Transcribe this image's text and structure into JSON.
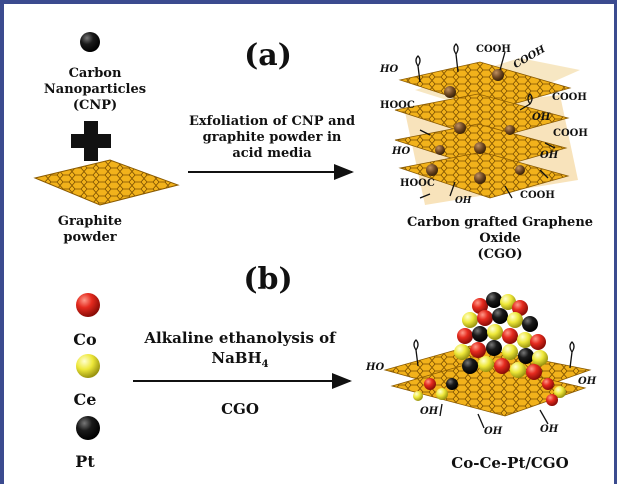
{
  "panel_a": {
    "label": "(a)",
    "cnp_label_line1": "Carbon",
    "cnp_label_line2": "Nanoparticles (CNP)",
    "graphite_label_line1": "Graphite",
    "graphite_label_line2": "powder",
    "process_line1": "Exfoliation of CNP and",
    "process_line2": "graphite powder in",
    "process_line3": "acid media",
    "product_line1": "Carbon grafted Graphene",
    "product_line2": "Oxide",
    "product_line3": "(CGO)",
    "groups": {
      "ho": "HO",
      "cooh": "COOH",
      "hooc": "HOOC",
      "oh": "OH"
    }
  },
  "panel_b": {
    "label": "(b)",
    "co": "Co",
    "ce": "Ce",
    "pt": "Pt",
    "process_line1": "Alkaline ethanolysis of",
    "process_line2_main": "NaBH",
    "process_line2_sub": "4",
    "process_line3": "CGO",
    "product": "Co-Ce-Pt/CGO"
  },
  "colors": {
    "frame": "#3b4b8f",
    "graphene": "#f2b21b",
    "co_sphere": "#e0261f",
    "ce_sphere": "#f0ec3a",
    "pt_sphere": "#111111"
  }
}
